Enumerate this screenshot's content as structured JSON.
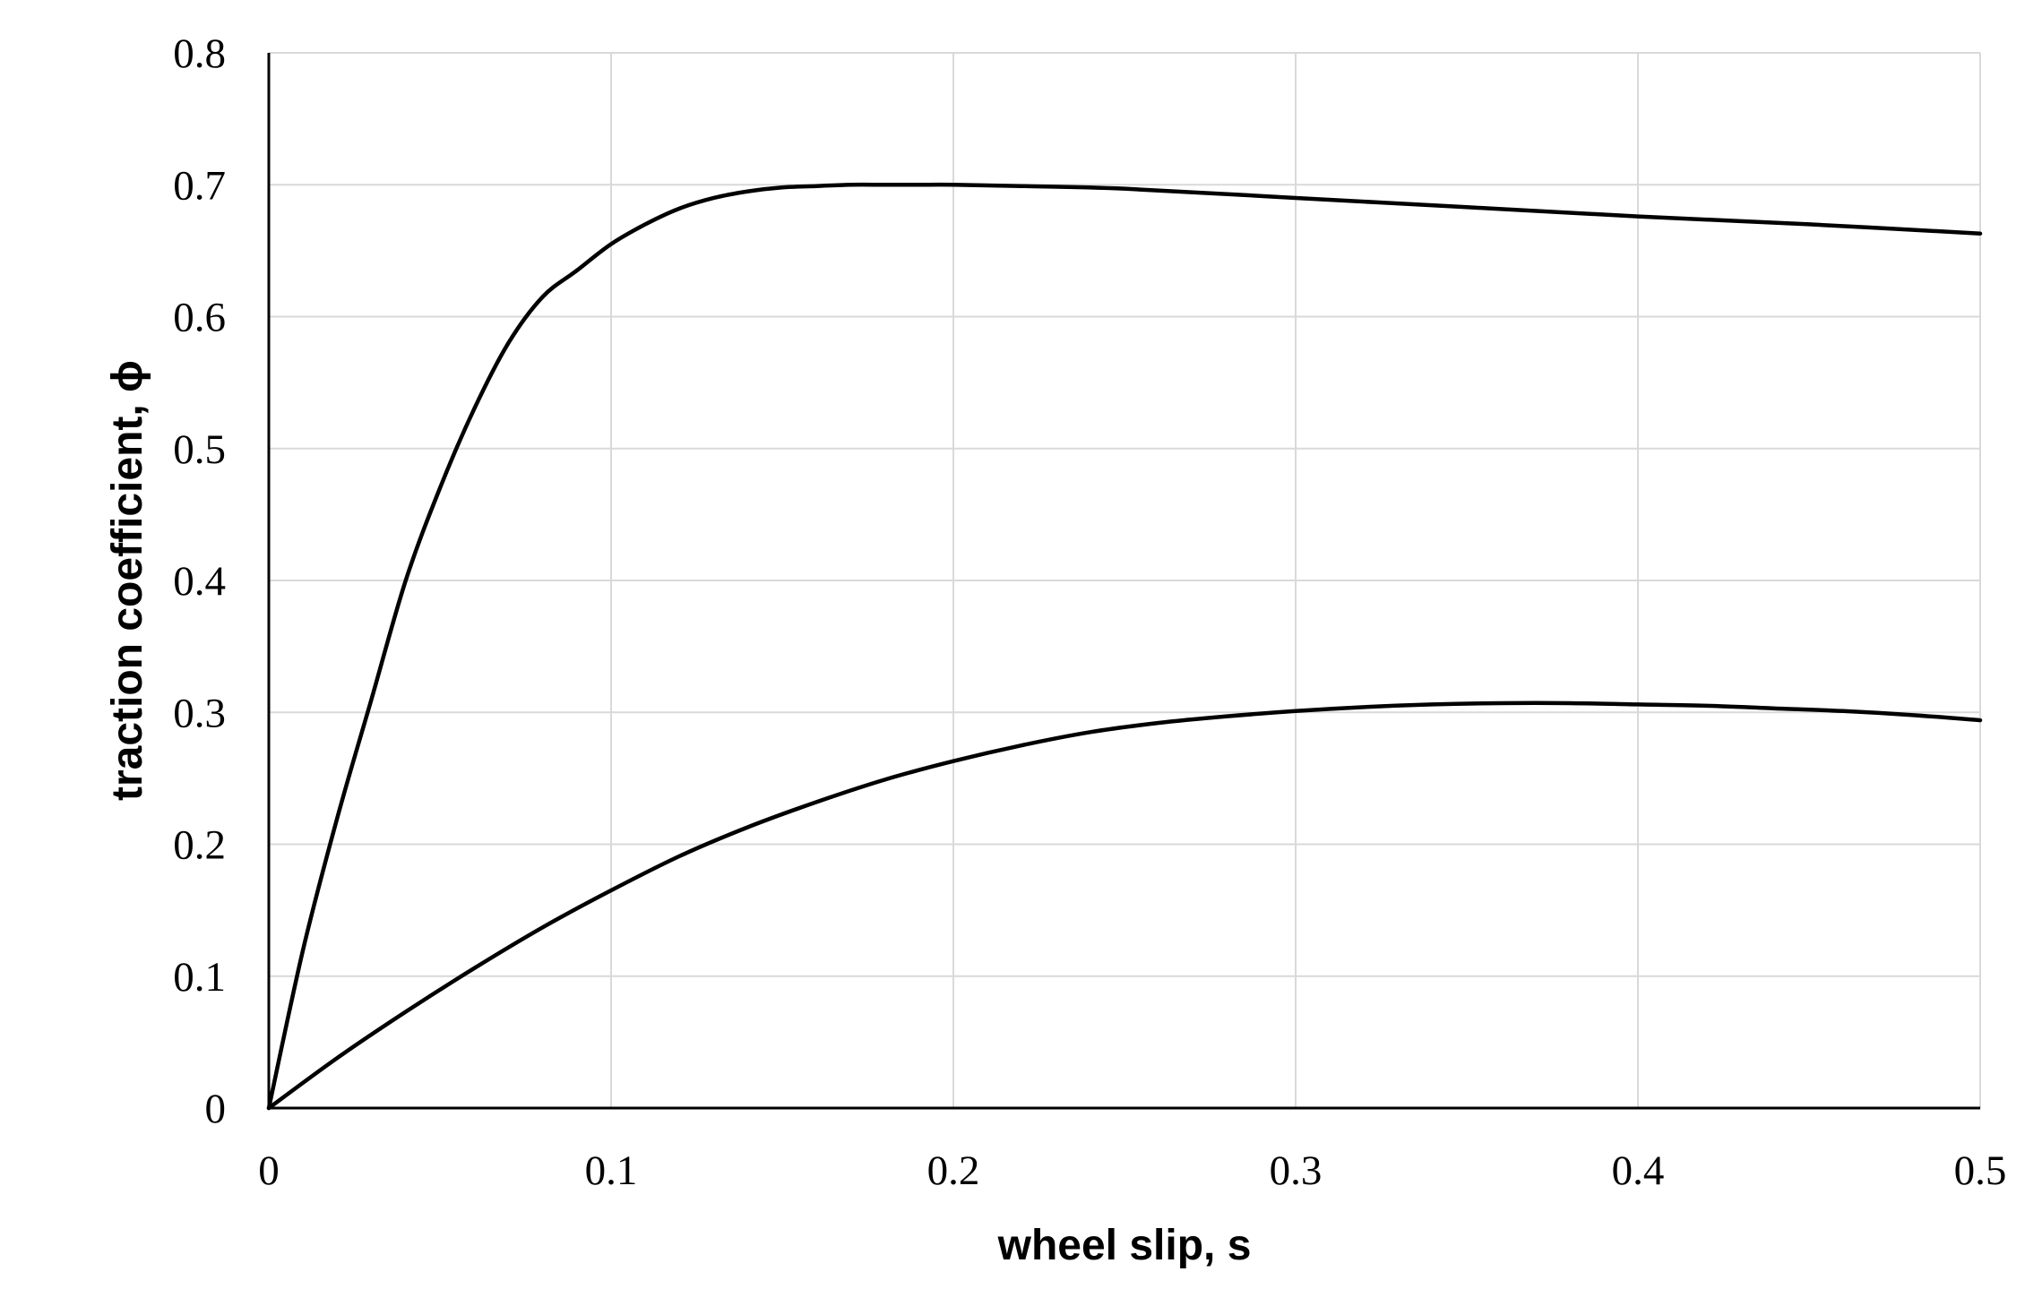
{
  "chart_data": {
    "type": "line",
    "title": "",
    "xlabel": "wheel slip, s",
    "ylabel": "traction coefficient, ϕ",
    "xlim": [
      0,
      0.5
    ],
    "ylim": [
      0,
      0.8
    ],
    "x_ticks": [
      "0",
      "0.1",
      "0.2",
      "0.3",
      "0.4",
      "0.5"
    ],
    "y_ticks": [
      "0",
      "0.1",
      "0.2",
      "0.3",
      "0.4",
      "0.5",
      "0.6",
      "0.7",
      "0.8"
    ],
    "grid": true,
    "legend": "none",
    "line_color": "#000000",
    "grid_color": "#d9d9d9",
    "series": [
      {
        "x": [
          0,
          0.01,
          0.02,
          0.03,
          0.04,
          0.05,
          0.06,
          0.07,
          0.08,
          0.09,
          0.1,
          0.11,
          0.12,
          0.13,
          0.14,
          0.15,
          0.16,
          0.17,
          0.18,
          0.19,
          0.2,
          0.22,
          0.25,
          0.3,
          0.35,
          0.4,
          0.45,
          0.5
        ],
        "y": [
          0,
          0.12,
          0.22,
          0.31,
          0.4,
          0.47,
          0.53,
          0.58,
          0.615,
          0.635,
          0.655,
          0.67,
          0.682,
          0.69,
          0.695,
          0.698,
          0.699,
          0.7,
          0.7,
          0.7,
          0.7,
          0.699,
          0.697,
          0.69,
          0.683,
          0.676,
          0.67,
          0.663
        ]
      },
      {
        "x": [
          0,
          0.02,
          0.04,
          0.06,
          0.08,
          0.1,
          0.12,
          0.14,
          0.16,
          0.18,
          0.2,
          0.22,
          0.24,
          0.26,
          0.28,
          0.3,
          0.32,
          0.34,
          0.36,
          0.38,
          0.4,
          0.42,
          0.44,
          0.46,
          0.48,
          0.5
        ],
        "y": [
          0,
          0.038,
          0.073,
          0.106,
          0.137,
          0.165,
          0.191,
          0.213,
          0.232,
          0.249,
          0.263,
          0.275,
          0.285,
          0.292,
          0.297,
          0.301,
          0.304,
          0.306,
          0.307,
          0.307,
          0.306,
          0.305,
          0.303,
          0.301,
          0.298,
          0.294
        ]
      }
    ]
  }
}
